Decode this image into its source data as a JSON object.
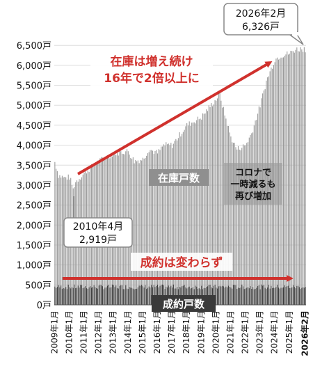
{
  "chart_data": {
    "type": "bar",
    "ylim": [
      0,
      6800
    ],
    "y_ticks": [
      0,
      500,
      1000,
      1500,
      2000,
      2500,
      3000,
      3500,
      4000,
      4500,
      5000,
      5500,
      6000,
      6500
    ],
    "y_tick_suffix": "戸",
    "x_tick_labels": [
      "2009年1月",
      "2010年1月",
      "2011年1月",
      "2012年1月",
      "2013年1月",
      "2014年1月",
      "2015年1月",
      "2016年1月",
      "2017年1月",
      "2018年1月",
      "2019年1月",
      "2020年1月",
      "2021年1月",
      "2022年1月",
      "2023年1月",
      "2024年1月",
      "2025年1月",
      "2026年2月"
    ],
    "x_range": [
      "2009-01",
      "2026-02"
    ],
    "series": [
      {
        "name": "在庫戸数",
        "color": "#9a9a9a",
        "anchor_points": [
          {
            "month": "2009-01",
            "value": 3580
          },
          {
            "month": "2009-04",
            "value": 3250
          },
          {
            "month": "2009-09",
            "value": 3180
          },
          {
            "month": "2010-01",
            "value": 3200
          },
          {
            "month": "2010-04",
            "value": 2919
          },
          {
            "month": "2010-06",
            "value": 3080
          },
          {
            "month": "2011-01",
            "value": 3300
          },
          {
            "month": "2012-01",
            "value": 3600
          },
          {
            "month": "2013-01",
            "value": 3800
          },
          {
            "month": "2014-01",
            "value": 3850
          },
          {
            "month": "2014-06",
            "value": 3600
          },
          {
            "month": "2015-01",
            "value": 3650
          },
          {
            "month": "2015-06",
            "value": 3900
          },
          {
            "month": "2016-01",
            "value": 3800
          },
          {
            "month": "2016-06",
            "value": 4000
          },
          {
            "month": "2017-01",
            "value": 4000
          },
          {
            "month": "2018-01",
            "value": 4500
          },
          {
            "month": "2019-01",
            "value": 4700
          },
          {
            "month": "2019-06",
            "value": 4900
          },
          {
            "month": "2020-01",
            "value": 5150
          },
          {
            "month": "2020-04",
            "value": 5300
          },
          {
            "month": "2020-06",
            "value": 5000
          },
          {
            "month": "2021-01",
            "value": 4200
          },
          {
            "month": "2021-06",
            "value": 3900
          },
          {
            "month": "2022-01",
            "value": 4000
          },
          {
            "month": "2022-06",
            "value": 4300
          },
          {
            "month": "2023-01",
            "value": 5000
          },
          {
            "month": "2023-06",
            "value": 5600
          },
          {
            "month": "2024-01",
            "value": 6150
          },
          {
            "month": "2024-06",
            "value": 6250
          },
          {
            "month": "2025-01",
            "value": 6300
          },
          {
            "month": "2025-06",
            "value": 6400
          },
          {
            "month": "2026-01",
            "value": 6420
          },
          {
            "month": "2026-02",
            "value": 6326
          }
        ]
      },
      {
        "name": "成約戸数",
        "color": "#3a3a3a",
        "anchor_points": [
          {
            "month": "2009-01",
            "value": 450
          },
          {
            "month": "2026-02",
            "value": 450
          }
        ]
      }
    ],
    "annotations": {
      "latest_date": "2026年2月",
      "latest_value": "6,326戸",
      "low_date": "2010年4月",
      "low_value": "2,919戸",
      "trend_line1": "在庫は増え続け",
      "trend_line2": "16年で2倍以上に",
      "inventory_label": "在庫戸数",
      "corona_line1": "コロナで",
      "corona_line2": "一時減るも",
      "corona_line3": "再び増加",
      "sales_note": "成約は変わらず",
      "sales_label": "成約戸数"
    },
    "colors": {
      "accent_red": "#d0312d",
      "inventory_gray": "#9a9a9a",
      "sales_dark": "#3a3a3a"
    }
  }
}
